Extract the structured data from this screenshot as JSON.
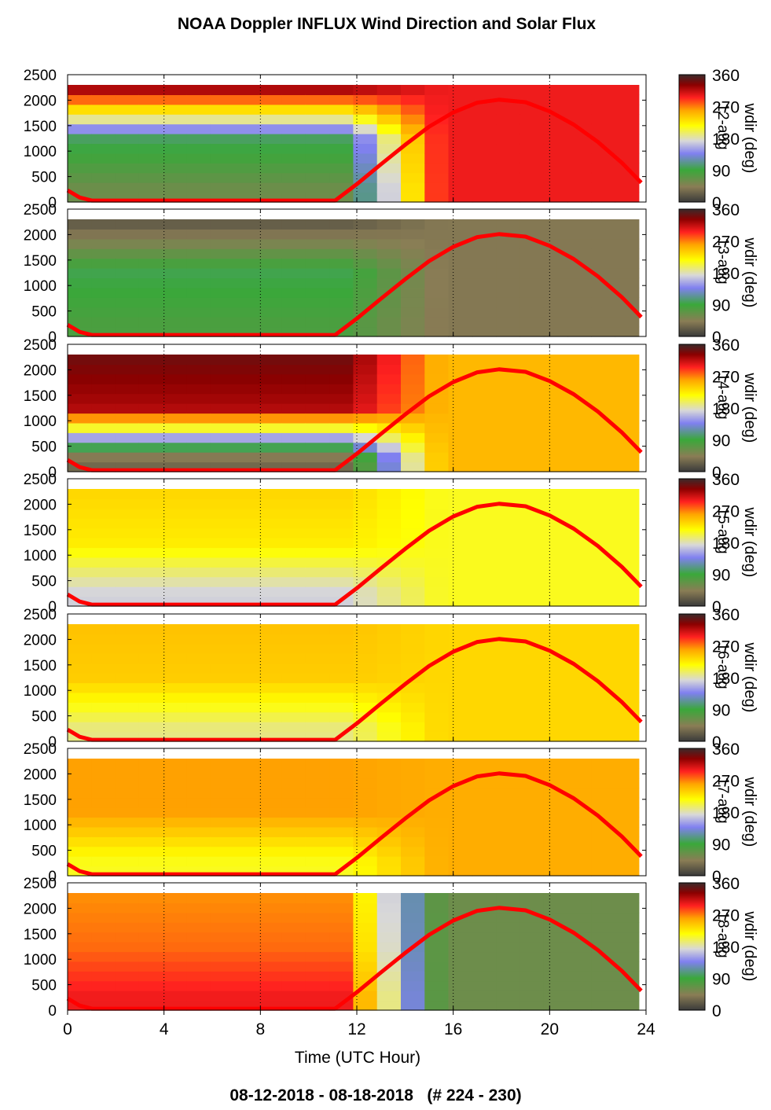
{
  "title": "NOAA Doppler INFLUX Wind Direction and Solar Flux",
  "footer": "08-12-2018 - 08-18-2018   (# 224 - 230)",
  "colors": {
    "solar_curve": "#ff0000",
    "colormap_stops": [
      "#3a3a3a",
      "#8a7d55",
      "#3aa83a",
      "#8080f0",
      "#d8d8d8",
      "#ffff00",
      "#ffa500",
      "#ff2020",
      "#8b0000",
      "#3a2a2a"
    ]
  },
  "chart_data": {
    "type": "heatmap",
    "xlabel": "Time (UTC Hour)",
    "xlim": [
      0,
      24
    ],
    "xticks": [
      "0",
      "4",
      "8",
      "12",
      "16",
      "20",
      "24"
    ],
    "ylim": [
      0,
      2500
    ],
    "yticks": [
      "0",
      "500",
      "1000",
      "1500",
      "2000",
      "2500"
    ],
    "colorbar": {
      "label": "wdir (deg)",
      "range": [
        0,
        360
      ],
      "ticks": [
        "0",
        "90",
        "180",
        "270",
        "360"
      ]
    },
    "solar_flux_curve": {
      "hours": [
        0,
        0.5,
        1,
        2,
        4,
        6,
        8,
        10,
        11.1,
        12,
        13,
        14,
        15,
        16,
        17,
        17.9,
        19,
        20,
        21,
        22,
        23,
        23.8
      ],
      "height_equiv": [
        230,
        90,
        30,
        30,
        30,
        30,
        30,
        30,
        30,
        350,
        740,
        1120,
        1480,
        1760,
        1950,
        2010,
        1960,
        1780,
        1520,
        1180,
        770,
        380
      ]
    },
    "panels": [
      {
        "day": "12-aug",
        "values_deg_by_height_band": [
          {
            "height": 250,
            "wdir": 60
          },
          {
            "height": 1250,
            "wdir": 100
          },
          {
            "height": 2250,
            "wdir": 330
          }
        ],
        "afternoon_wdir": 300
      },
      {
        "day": "13-aug",
        "values_deg_by_height_band": [
          {
            "height": 250,
            "wdir": 80
          },
          {
            "height": 1250,
            "wdir": 95
          },
          {
            "height": 2250,
            "wdir": 20
          }
        ],
        "afternoon_wdir": 40
      },
      {
        "day": "14-aug",
        "values_deg_by_height_band": [
          {
            "height": 250,
            "wdir": 30
          },
          {
            "height": 1250,
            "wdir": 320
          },
          {
            "height": 2250,
            "wdir": 340
          }
        ],
        "afternoon_wdir": 250
      },
      {
        "day": "15-aug",
        "values_deg_by_height_band": [
          {
            "height": 250,
            "wdir": 170
          },
          {
            "height": 1250,
            "wdir": 225
          },
          {
            "height": 2250,
            "wdir": 235
          }
        ],
        "afternoon_wdir": 210
      },
      {
        "day": "16-aug",
        "values_deg_by_height_band": [
          {
            "height": 250,
            "wdir": 190
          },
          {
            "height": 1250,
            "wdir": 240
          },
          {
            "height": 2250,
            "wdir": 245
          }
        ],
        "afternoon_wdir": 235
      },
      {
        "day": "17-aug",
        "values_deg_by_height_band": [
          {
            "height": 250,
            "wdir": 210
          },
          {
            "height": 1250,
            "wdir": 260
          },
          {
            "height": 2250,
            "wdir": 260
          }
        ],
        "afternoon_wdir": 255
      },
      {
        "day": "18-aug",
        "values_deg_by_height_band": [
          {
            "height": 250,
            "wdir": 300
          },
          {
            "height": 1250,
            "wdir": 275
          },
          {
            "height": 2250,
            "wdir": 265
          }
        ],
        "afternoon_wdir": 60
      }
    ]
  }
}
